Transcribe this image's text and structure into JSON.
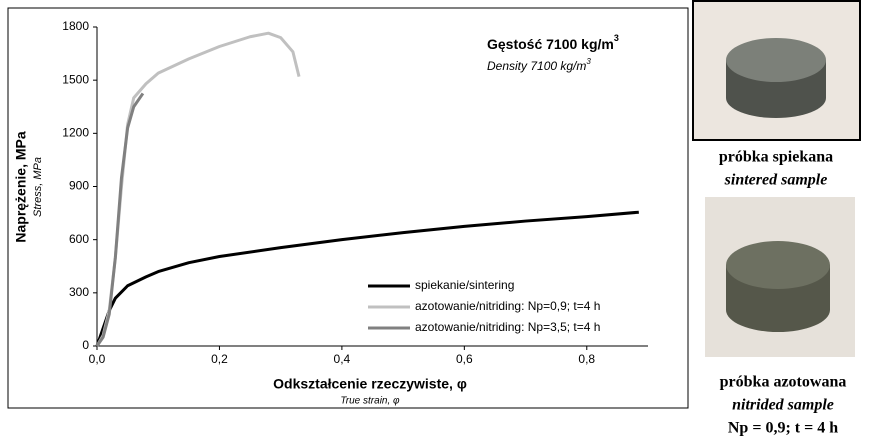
{
  "chart_data": {
    "type": "line",
    "annotation": {
      "text": "Gęstość 7100 kg/m",
      "sup": "3"
    },
    "annotation_sub": {
      "text": "Density 7100 kg/m",
      "sup": "3"
    },
    "y_label": "Naprężenie, MPa",
    "y_sublabel": "Stress, MPa",
    "x_label": "Odkształcenie rzeczywiste, φ",
    "x_sublabel": "True strain, φ",
    "xlim": [
      0,
      0.9
    ],
    "ylim": [
      0,
      1800
    ],
    "xticks": [
      {
        "value": 0,
        "label": "0,0"
      },
      {
        "value": 0.2,
        "label": "0,2"
      },
      {
        "value": 0.4,
        "label": "0,4"
      },
      {
        "value": 0.6,
        "label": "0,6"
      },
      {
        "value": 0.8,
        "label": "0,8"
      }
    ],
    "yticks": [
      0,
      300,
      600,
      900,
      1200,
      1500,
      1800
    ],
    "legend": "lower right",
    "series": [
      {
        "name": "spiekanie/sintering",
        "color": "#000000",
        "x": [
          0,
          0.01,
          0.02,
          0.03,
          0.05,
          0.08,
          0.1,
          0.15,
          0.2,
          0.3,
          0.4,
          0.5,
          0.6,
          0.7,
          0.8,
          0.885
        ],
        "values": [
          0,
          100,
          200,
          270,
          340,
          390,
          420,
          470,
          505,
          555,
          600,
          640,
          675,
          705,
          730,
          755
        ]
      },
      {
        "name": "azotowanie/nitriding: Np=0,9; t=4 h",
        "color": "#c0c0c0",
        "x": [
          0,
          0.01,
          0.02,
          0.03,
          0.04,
          0.05,
          0.06,
          0.08,
          0.1,
          0.15,
          0.2,
          0.25,
          0.28,
          0.3,
          0.32,
          0.33
        ],
        "values": [
          0,
          60,
          200,
          500,
          900,
          1250,
          1400,
          1480,
          1540,
          1620,
          1690,
          1745,
          1765,
          1740,
          1660,
          1520
        ]
      },
      {
        "name": "azotowanie/nitriding: Np=3,5; t=4 h",
        "color": "#808080",
        "x": [
          0,
          0.01,
          0.02,
          0.03,
          0.04,
          0.05,
          0.06,
          0.075
        ],
        "values": [
          0,
          50,
          180,
          500,
          950,
          1230,
          1350,
          1425
        ]
      }
    ]
  },
  "photos": [
    {
      "caption": "próbka spiekana",
      "caption_en": "sintered sample"
    },
    {
      "caption": "próbka azotowana",
      "caption_en": "nitrided sample",
      "note": "Np = 0,9; t = 4 h"
    }
  ]
}
